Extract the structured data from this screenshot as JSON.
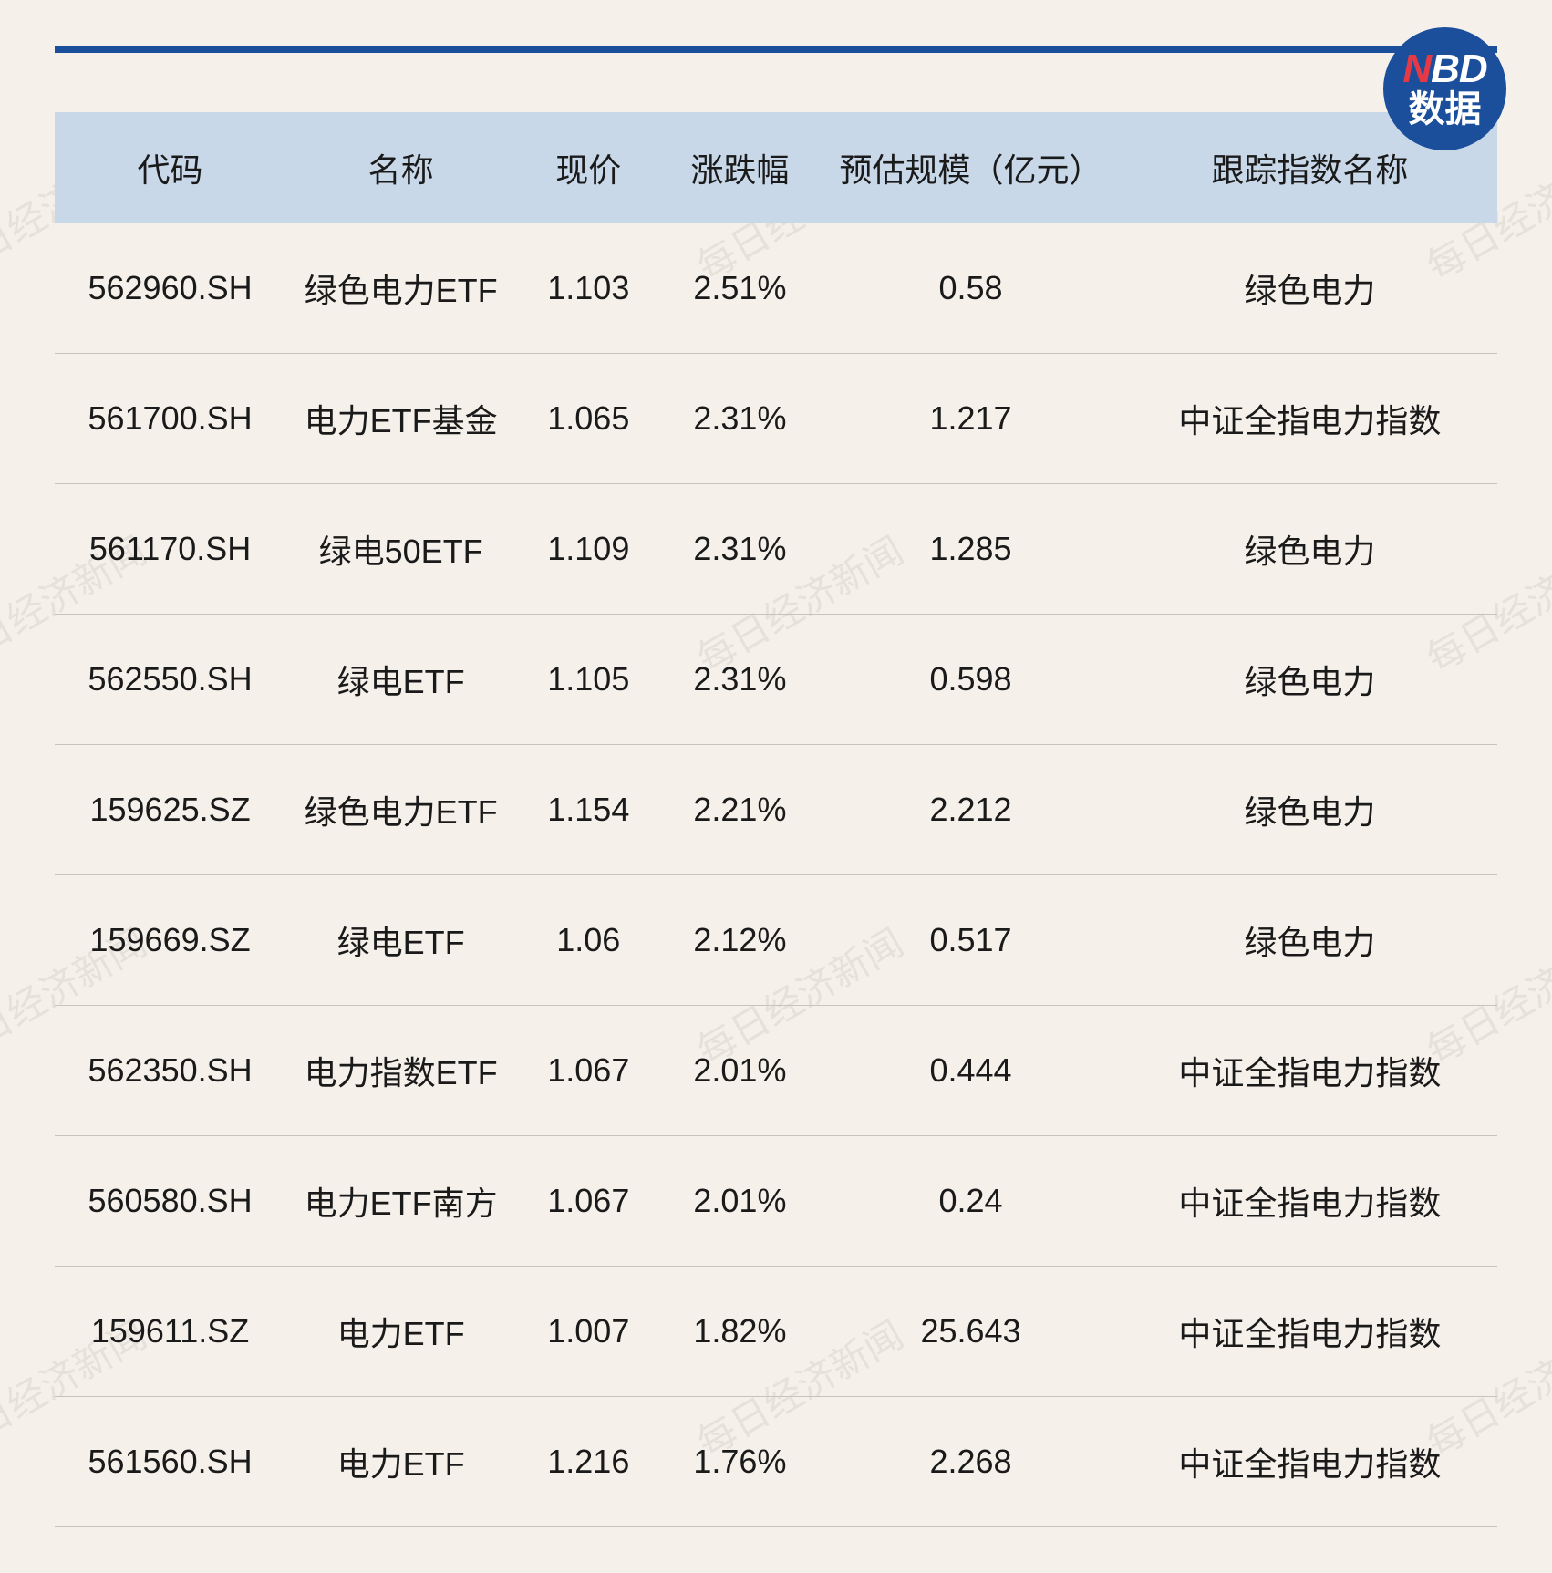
{
  "badge": {
    "line1_n": "N",
    "line1_bd": "BD",
    "line2": "数据"
  },
  "watermark": {
    "text": "每日经济新闻"
  },
  "colors": {
    "background": "#f5f0ea",
    "accent_blue": "#1B4F9C",
    "header_bg": "#c8d8e8",
    "badge_red": "#E63946",
    "text": "#1a1a1a",
    "row_border": "#c8c3bc",
    "watermark": "#d8d3cc"
  },
  "table": {
    "type": "table",
    "columns": [
      {
        "key": "code",
        "label": "代码",
        "width_pct": 16
      },
      {
        "key": "name",
        "label": "名称",
        "width_pct": 16
      },
      {
        "key": "price",
        "label": "现价",
        "width_pct": 10
      },
      {
        "key": "change",
        "label": "涨跌幅",
        "width_pct": 11
      },
      {
        "key": "scale",
        "label": "预估规模（亿元）",
        "width_pct": 21
      },
      {
        "key": "index",
        "label": "跟踪指数名称",
        "width_pct": 26
      }
    ],
    "rows": [
      {
        "code": "562960.SH",
        "name": "绿色电力ETF",
        "price": "1.103",
        "change": "2.51%",
        "scale": "0.58",
        "index": "绿色电力"
      },
      {
        "code": "561700.SH",
        "name": "电力ETF基金",
        "price": "1.065",
        "change": "2.31%",
        "scale": "1.217",
        "index": "中证全指电力指数"
      },
      {
        "code": "561170.SH",
        "name": "绿电50ETF",
        "price": "1.109",
        "change": "2.31%",
        "scale": "1.285",
        "index": "绿色电力"
      },
      {
        "code": "562550.SH",
        "name": "绿电ETF",
        "price": "1.105",
        "change": "2.31%",
        "scale": "0.598",
        "index": "绿色电力"
      },
      {
        "code": "159625.SZ",
        "name": "绿色电力ETF",
        "price": "1.154",
        "change": "2.21%",
        "scale": "2.212",
        "index": "绿色电力"
      },
      {
        "code": "159669.SZ",
        "name": "绿电ETF",
        "price": "1.06",
        "change": "2.12%",
        "scale": "0.517",
        "index": "绿色电力"
      },
      {
        "code": "562350.SH",
        "name": "电力指数ETF",
        "price": "1.067",
        "change": "2.01%",
        "scale": "0.444",
        "index": "中证全指电力指数"
      },
      {
        "code": "560580.SH",
        "name": "电力ETF南方",
        "price": "1.067",
        "change": "2.01%",
        "scale": "0.24",
        "index": "中证全指电力指数"
      },
      {
        "code": "159611.SZ",
        "name": "电力ETF",
        "price": "1.007",
        "change": "1.82%",
        "scale": "25.643",
        "index": "中证全指电力指数"
      },
      {
        "code": "561560.SH",
        "name": "电力ETF",
        "price": "1.216",
        "change": "1.76%",
        "scale": "2.268",
        "index": "中证全指电力指数"
      }
    ],
    "header_fontsize": 36,
    "cell_fontsize": 36,
    "header_bg": "#c8d8e8",
    "row_border_color": "#c8c3bc"
  }
}
